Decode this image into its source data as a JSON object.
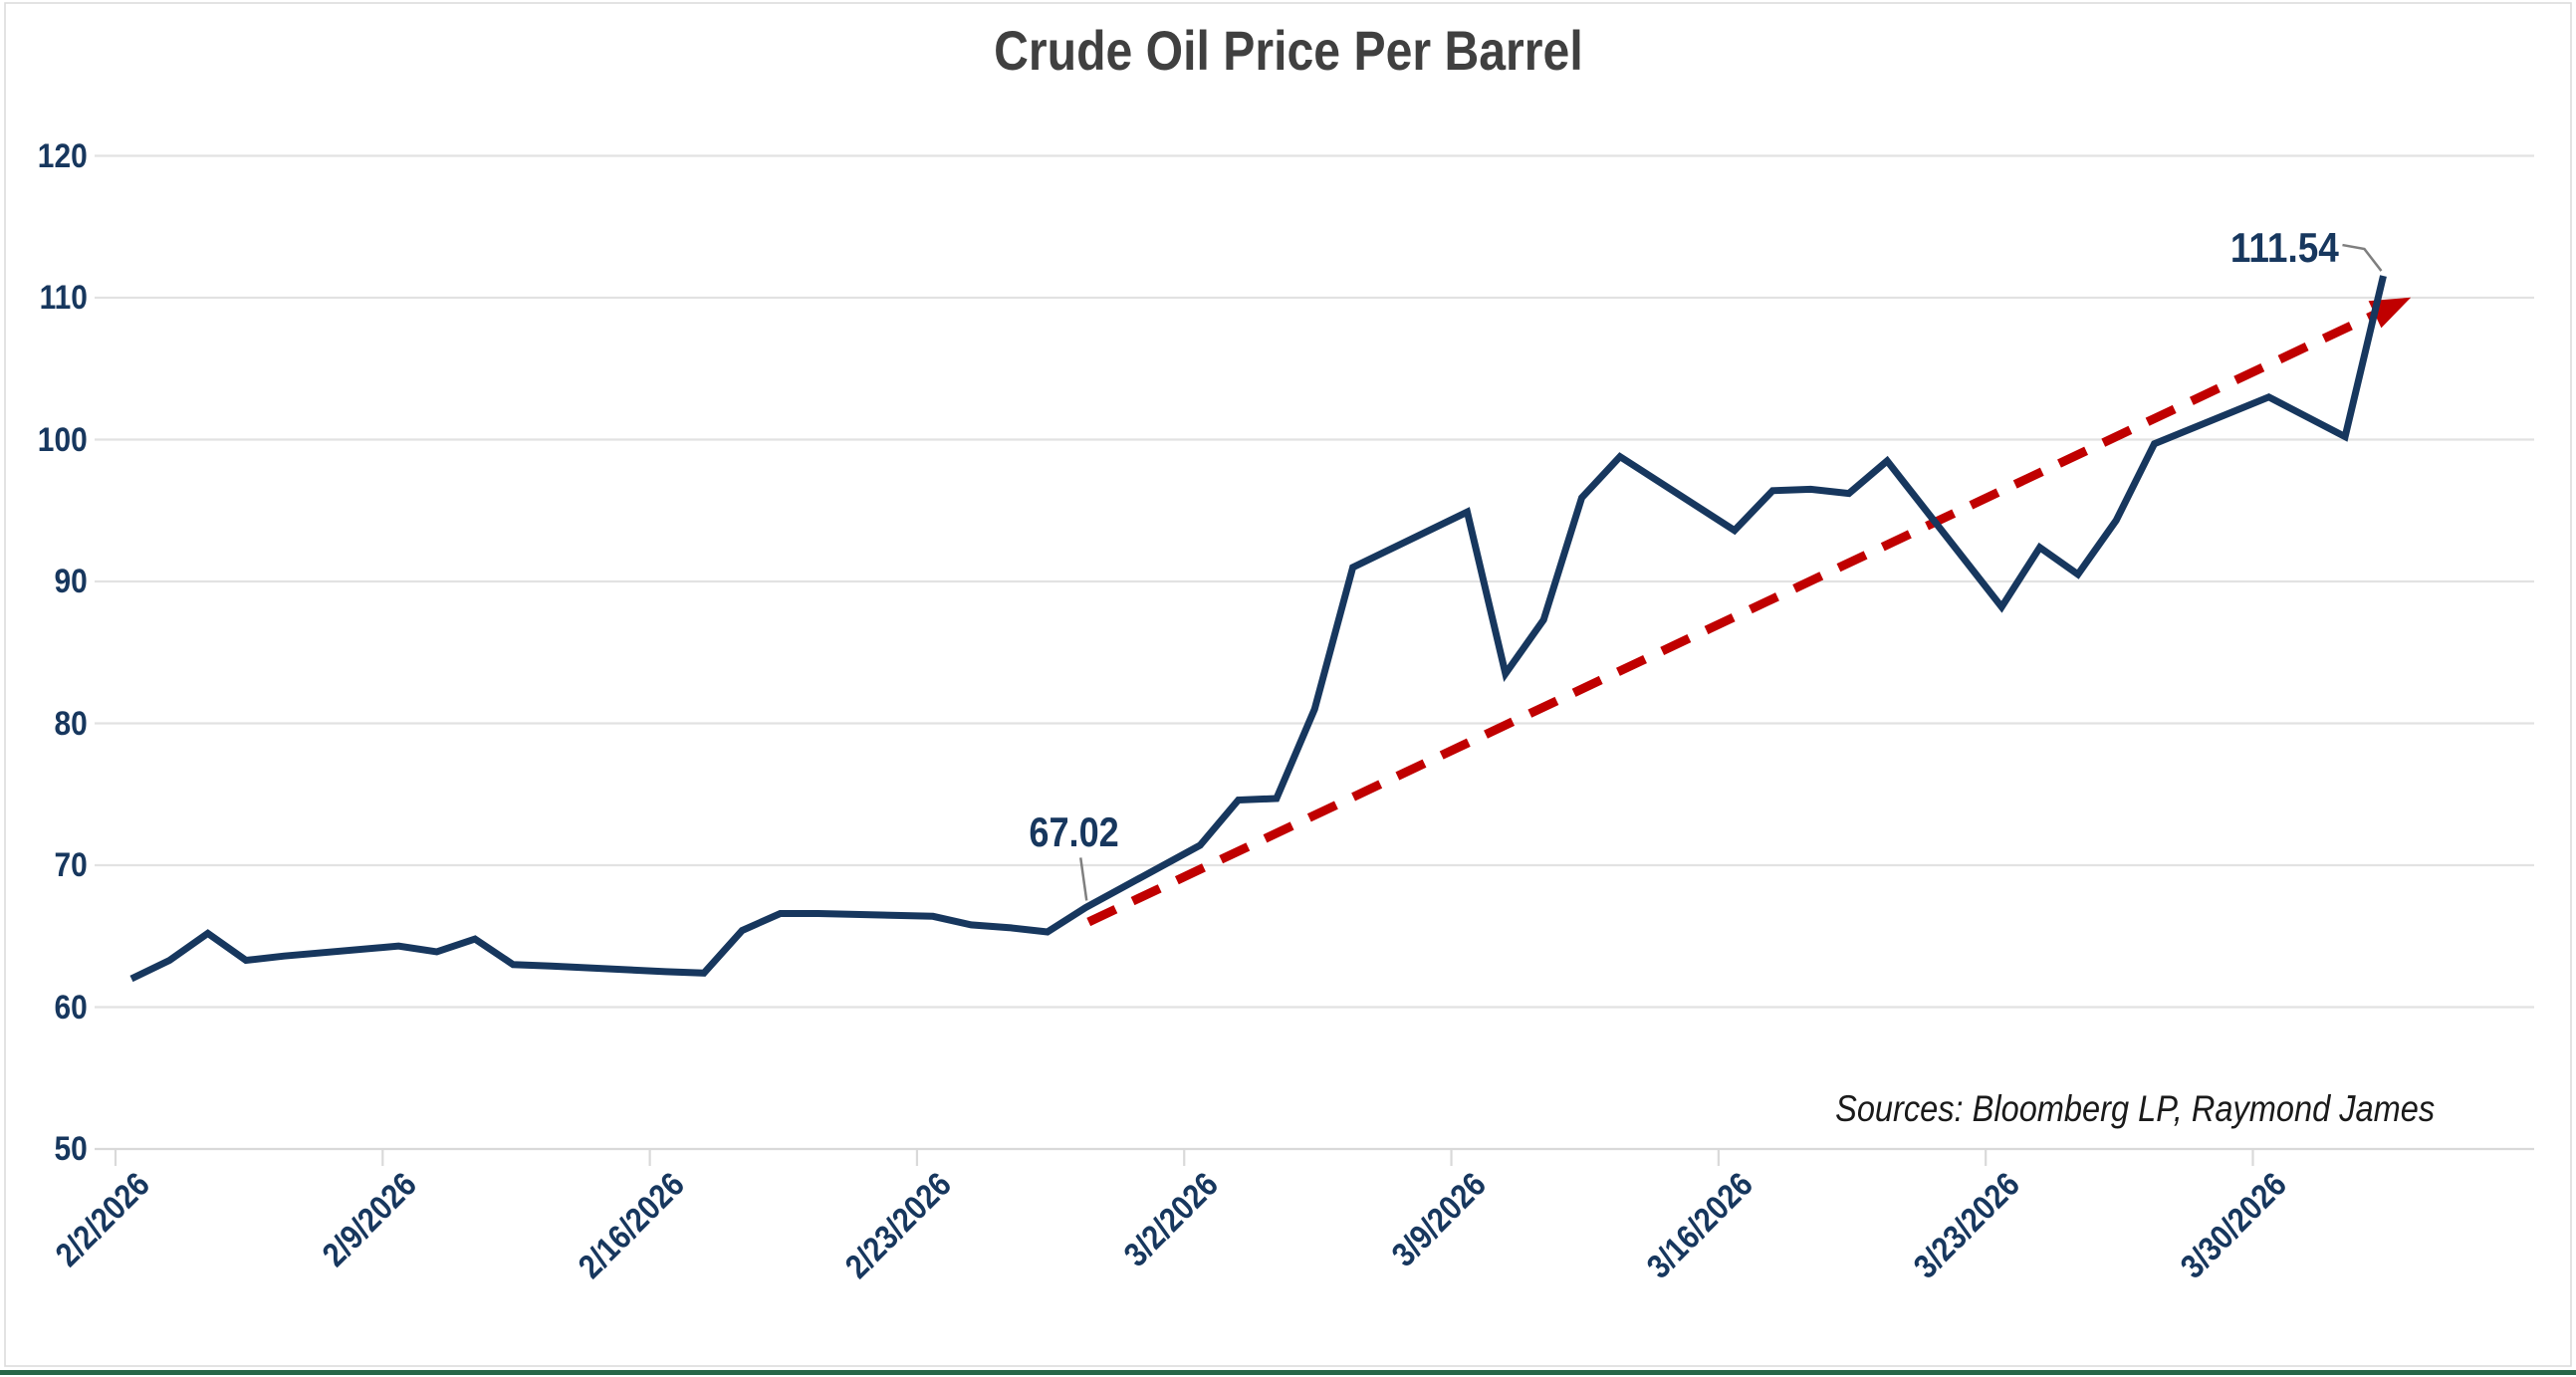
{
  "chart_data": {
    "type": "line",
    "title": "Crude Oil Price Per Barrel",
    "source_note": "Sources: Bloomberg LP, Raymond James",
    "series": [
      {
        "name": "Crude Oil Price Per Barrel",
        "dates": [
          "2/2/2026",
          "2/3/2026",
          "2/4/2026",
          "2/5/2026",
          "2/6/2026",
          "2/9/2026",
          "2/10/2026",
          "2/11/2026",
          "2/12/2026",
          "2/13/2026",
          "2/16/2026",
          "2/17/2026",
          "2/18/2026",
          "2/19/2026",
          "2/20/2026",
          "2/23/2026",
          "2/24/2026",
          "2/25/2026",
          "2/26/2026",
          "2/27/2026",
          "3/2/2026",
          "3/3/2026",
          "3/4/2026",
          "3/5/2026",
          "3/6/2026",
          "3/9/2026",
          "3/10/2026",
          "3/11/2026",
          "3/12/2026",
          "3/13/2026",
          "3/16/2026",
          "3/17/2026",
          "3/18/2026",
          "3/19/2026",
          "3/20/2026",
          "3/23/2026",
          "3/24/2026",
          "3/25/2026",
          "3/26/2026",
          "3/27/2026",
          "3/30/2026",
          "3/31/2026",
          "4/1/2026",
          "4/2/2026"
        ],
        "values": [
          62.0,
          63.3,
          65.2,
          63.3,
          63.6,
          64.3,
          63.9,
          64.8,
          63.0,
          62.9,
          62.5,
          62.4,
          65.4,
          66.6,
          66.6,
          66.4,
          65.8,
          65.6,
          65.3,
          67.02,
          71.4,
          74.6,
          74.7,
          81.0,
          91.0,
          94.9,
          83.5,
          87.3,
          95.9,
          98.8,
          93.6,
          96.4,
          96.5,
          96.2,
          98.5,
          88.2,
          92.4,
          90.5,
          94.3,
          99.7,
          103.0,
          101.6,
          100.2,
          111.54
        ]
      }
    ],
    "ylim": [
      50,
      120
    ],
    "yticks": [
      50,
      60,
      70,
      80,
      90,
      100,
      110,
      120
    ],
    "xtick_labels": [
      "2/2/2026",
      "2/9/2026",
      "2/16/2026",
      "2/23/2026",
      "3/2/2026",
      "3/9/2026",
      "3/16/2026",
      "3/23/2026",
      "3/30/2026"
    ],
    "grid": "horizontal",
    "legend": "none",
    "annotations": [
      {
        "text": "67.02",
        "date": "2/27/2026",
        "value": 67.02
      },
      {
        "text": "111.54",
        "date": "4/2/2026",
        "value": 111.54
      }
    ],
    "trendline": {
      "style": "dashed",
      "arrow": true,
      "start": {
        "date": "2/27/2026",
        "value": 66.0
      },
      "end": {
        "date": "4/2/2026",
        "value": 109.3
      }
    },
    "colors": {
      "line": "#17375e",
      "labels": "#17375e",
      "title": "#404040",
      "grid": "#e2e2e2",
      "axis": "#d9d9d9",
      "trend": "#c00000",
      "leader": "#7f7f7f",
      "source_text": "#1a1a1a",
      "bottom_bar": "#276749",
      "frame": "#dcdcdc"
    }
  }
}
